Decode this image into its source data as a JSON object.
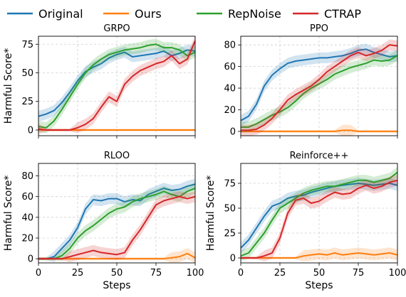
{
  "legend": {
    "placement": "top",
    "items": [
      {
        "label": "Original",
        "color": "#1f77b4"
      },
      {
        "label": "Ours",
        "color": "#ff7f0e"
      },
      {
        "label": "RepNoise",
        "color": "#2ca02c"
      },
      {
        "label": "CTRAP",
        "color": "#d62728"
      }
    ]
  },
  "chart_data": [
    {
      "type": "line",
      "title": "GRPO",
      "xlabel": "",
      "ylabel": "Harmful Score*",
      "xlim": [
        0,
        100
      ],
      "ylim": [
        -5,
        82
      ],
      "xticks": [
        0,
        25,
        50,
        75,
        100
      ],
      "yticks": [
        0,
        25,
        50,
        75
      ],
      "grid": true,
      "x": [
        0,
        5,
        10,
        15,
        20,
        25,
        30,
        35,
        40,
        45,
        50,
        55,
        60,
        65,
        70,
        75,
        80,
        85,
        90,
        95,
        100
      ],
      "series": [
        {
          "name": "Original",
          "color": "#1f77b4",
          "values": [
            12,
            14,
            17,
            24,
            33,
            43,
            51,
            55,
            58,
            63,
            66,
            68,
            64,
            65,
            66,
            67,
            69,
            65,
            67,
            70,
            69
          ]
        },
        {
          "name": "Ours",
          "color": "#ff7f0e",
          "values": [
            0,
            0,
            0,
            0,
            0,
            0,
            0,
            0,
            0,
            0,
            0,
            0,
            0,
            0,
            0,
            0,
            0,
            0,
            0,
            0,
            0
          ]
        },
        {
          "name": "RepNoise",
          "color": "#2ca02c",
          "values": [
            3,
            2,
            8,
            18,
            29,
            40,
            50,
            57,
            62,
            66,
            68,
            70,
            71,
            72,
            74,
            75,
            72,
            72,
            70,
            65,
            68
          ]
        },
        {
          "name": "CTRAP",
          "color": "#d62728",
          "values": [
            1,
            0,
            0,
            0,
            0,
            2,
            5,
            10,
            20,
            29,
            25,
            40,
            47,
            52,
            55,
            58,
            60,
            65,
            58,
            62,
            78
          ]
        }
      ]
    },
    {
      "type": "line",
      "title": "PPO",
      "xlabel": "",
      "ylabel": "",
      "xlim": [
        0,
        100
      ],
      "ylim": [
        -4,
        88
      ],
      "xticks": [
        0,
        25,
        50,
        75,
        100
      ],
      "yticks": [
        0,
        20,
        40,
        60,
        80
      ],
      "grid": true,
      "x": [
        0,
        5,
        10,
        15,
        20,
        25,
        30,
        35,
        40,
        45,
        50,
        55,
        60,
        65,
        70,
        75,
        80,
        85,
        90,
        95,
        100
      ],
      "series": [
        {
          "name": "Original",
          "color": "#1f77b4",
          "values": [
            10,
            14,
            25,
            42,
            52,
            58,
            63,
            65,
            66,
            67,
            68,
            68,
            69,
            70,
            72,
            75,
            76,
            73,
            71,
            69,
            70
          ]
        },
        {
          "name": "Ours",
          "color": "#ff7f0e",
          "values": [
            0,
            0,
            0,
            0,
            0,
            0,
            0,
            0,
            0,
            0,
            0,
            0,
            0,
            1,
            1,
            0,
            0,
            0,
            0,
            0,
            0
          ]
        },
        {
          "name": "RepNoise",
          "color": "#2ca02c",
          "values": [
            4,
            4,
            7,
            11,
            15,
            18,
            22,
            28,
            35,
            40,
            44,
            48,
            53,
            56,
            59,
            61,
            63,
            66,
            65,
            66,
            70
          ]
        },
        {
          "name": "CTRAP",
          "color": "#d62728",
          "values": [
            1,
            1,
            2,
            6,
            12,
            20,
            29,
            34,
            38,
            42,
            48,
            55,
            60,
            65,
            70,
            73,
            70,
            72,
            75,
            80,
            79
          ]
        }
      ]
    },
    {
      "type": "line",
      "title": "RLOO",
      "xlabel": "Steps",
      "ylabel": "Harmful Score*",
      "xlim": [
        0,
        100
      ],
      "ylim": [
        -4,
        92
      ],
      "xticks": [
        0,
        25,
        50,
        75,
        100
      ],
      "yticks": [
        0,
        20,
        40,
        60,
        80
      ],
      "grid": true,
      "x": [
        0,
        5,
        10,
        15,
        20,
        25,
        30,
        35,
        40,
        45,
        50,
        55,
        60,
        65,
        70,
        75,
        80,
        85,
        90,
        95,
        100
      ],
      "series": [
        {
          "name": "Original",
          "color": "#1f77b4",
          "values": [
            0,
            0,
            2,
            10,
            18,
            30,
            48,
            57,
            56,
            58,
            58,
            55,
            57,
            56,
            62,
            65,
            68,
            66,
            67,
            70,
            72
          ]
        },
        {
          "name": "Ours",
          "color": "#ff7f0e",
          "values": [
            0,
            0,
            0,
            0,
            0,
            0,
            0,
            0,
            0,
            0,
            0,
            0,
            0,
            0,
            0,
            0,
            0,
            1,
            2,
            5,
            1
          ]
        },
        {
          "name": "RepNoise",
          "color": "#2ca02c",
          "values": [
            0,
            0,
            0,
            3,
            10,
            20,
            27,
            32,
            38,
            44,
            48,
            50,
            55,
            58,
            60,
            62,
            65,
            62,
            60,
            65,
            68
          ]
        },
        {
          "name": "CTRAP",
          "color": "#d62728",
          "values": [
            0,
            0,
            0,
            0,
            2,
            4,
            6,
            8,
            6,
            5,
            4,
            6,
            18,
            28,
            40,
            52,
            56,
            58,
            60,
            58,
            60
          ]
        }
      ]
    },
    {
      "type": "line",
      "title": "Reinforce++",
      "xlabel": "Steps",
      "ylabel": "Harmful Score*",
      "xlim": [
        0,
        100
      ],
      "ylim": [
        -5,
        95
      ],
      "xticks": [
        0,
        25,
        50,
        75,
        100
      ],
      "yticks": [
        0,
        25,
        50,
        75
      ],
      "grid": true,
      "x": [
        0,
        5,
        10,
        15,
        20,
        25,
        30,
        35,
        40,
        45,
        50,
        55,
        60,
        65,
        70,
        75,
        80,
        85,
        90,
        95,
        100
      ],
      "series": [
        {
          "name": "Original",
          "color": "#1f77b4",
          "values": [
            10,
            18,
            30,
            42,
            52,
            55,
            60,
            62,
            63,
            66,
            68,
            70,
            72,
            73,
            74,
            75,
            74,
            73,
            74,
            75,
            73
          ]
        },
        {
          "name": "Ours",
          "color": "#ff7f0e",
          "values": [
            0,
            0,
            0,
            0,
            0,
            0,
            0,
            0,
            2,
            3,
            4,
            3,
            5,
            3,
            4,
            5,
            4,
            3,
            4,
            5,
            3
          ]
        },
        {
          "name": "RepNoise",
          "color": "#2ca02c",
          "values": [
            2,
            5,
            15,
            25,
            38,
            50,
            55,
            60,
            65,
            68,
            70,
            72,
            72,
            74,
            76,
            78,
            78,
            76,
            78,
            80,
            86
          ]
        },
        {
          "name": "CTRAP",
          "color": "#d62728",
          "values": [
            0,
            0,
            0,
            2,
            5,
            20,
            45,
            58,
            60,
            55,
            57,
            62,
            66,
            64,
            65,
            70,
            73,
            70,
            72,
            76,
            78
          ]
        }
      ]
    }
  ]
}
